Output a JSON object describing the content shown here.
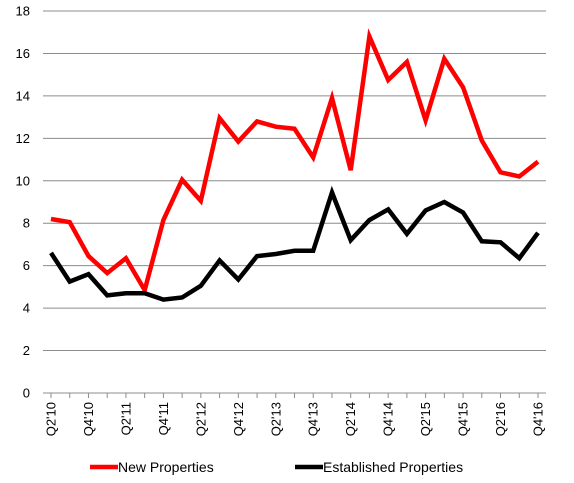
{
  "chart_data": {
    "type": "line",
    "title": "",
    "xlabel": "",
    "ylabel": "",
    "ylim": [
      0,
      18
    ],
    "yticks": [
      0,
      2,
      4,
      6,
      8,
      10,
      12,
      14,
      16,
      18
    ],
    "grid": "horizontal",
    "legend_position": "bottom",
    "x": [
      "Q2'10",
      "Q3'10",
      "Q4'10",
      "Q1'11",
      "Q2'11",
      "Q3'11",
      "Q4'11",
      "Q1'12",
      "Q2'12",
      "Q3'12",
      "Q4'12",
      "Q1'13",
      "Q2'13",
      "Q3'13",
      "Q4'13",
      "Q1'14",
      "Q2'14",
      "Q3'14",
      "Q4'14",
      "Q1'15",
      "Q2'15",
      "Q3'15",
      "Q4'15",
      "Q1'16",
      "Q2'16",
      "Q3'16",
      "Q4'16"
    ],
    "xtick_labels": [
      "Q2'10",
      "Q4'10",
      "Q2'11",
      "Q4'11",
      "Q2'12",
      "Q4'12",
      "Q2'13",
      "Q4'13",
      "Q2'14",
      "Q4'14",
      "Q2'15",
      "Q4'15",
      "Q2'16",
      "Q4'16"
    ],
    "series": [
      {
        "name": "New Properties",
        "color": "#ff0000",
        "values": [
          8.2,
          8.05,
          6.45,
          5.65,
          6.35,
          4.85,
          8.15,
          10.05,
          9.05,
          12.95,
          11.85,
          12.8,
          12.55,
          12.45,
          11.1,
          13.9,
          10.5,
          16.8,
          14.75,
          15.6,
          12.85,
          15.75,
          14.4,
          11.9,
          10.4,
          10.2,
          10.9
        ]
      },
      {
        "name": "Established Properties",
        "color": "#000000",
        "values": [
          6.6,
          5.25,
          5.6,
          4.6,
          4.7,
          4.7,
          4.4,
          4.5,
          5.05,
          6.25,
          5.35,
          6.45,
          6.55,
          6.7,
          6.7,
          9.45,
          7.2,
          8.15,
          8.65,
          7.5,
          8.6,
          9.0,
          8.5,
          7.15,
          7.1,
          6.35,
          7.55
        ]
      }
    ]
  }
}
